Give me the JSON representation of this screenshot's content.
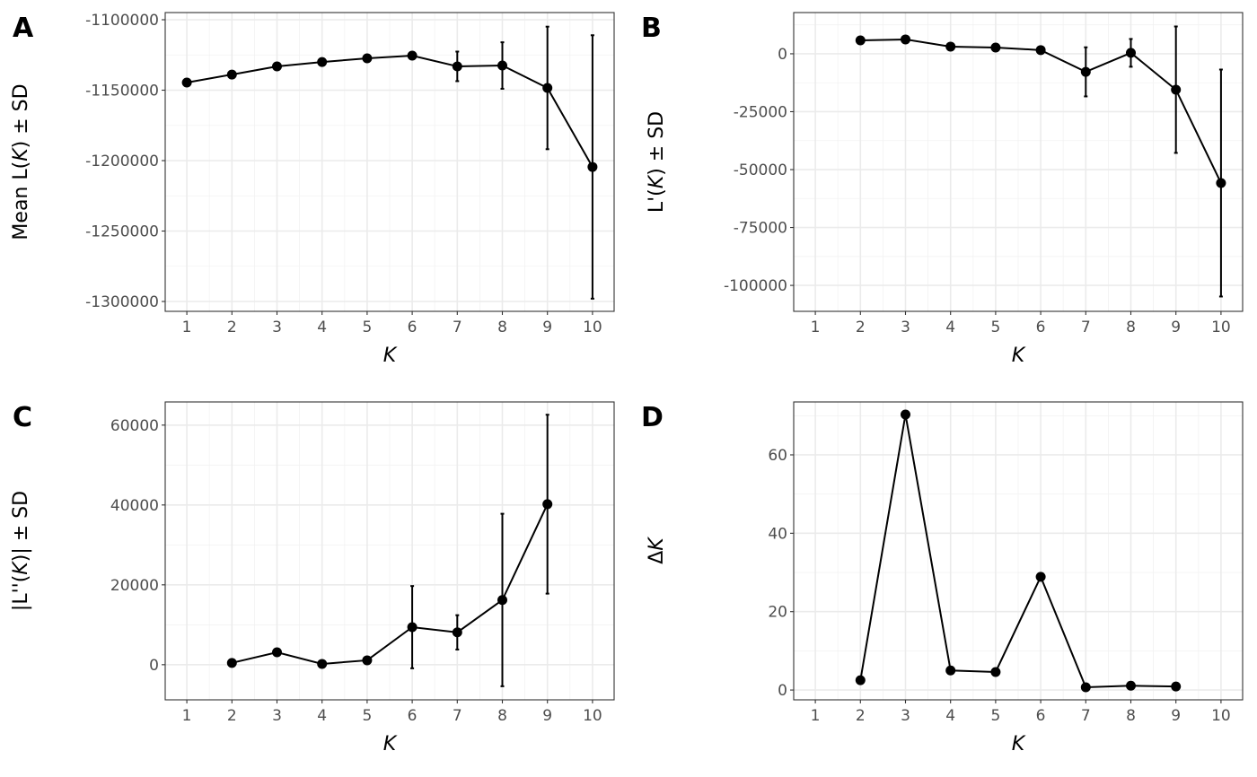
{
  "chart_data": [
    {
      "tag": "A",
      "type": "line",
      "xlabel": "K",
      "ylabel_parts": [
        "Mean L(",
        "K",
        ")  ±  SD"
      ],
      "x": [
        1,
        2,
        3,
        4,
        5,
        6,
        7,
        8,
        9,
        10
      ],
      "y": [
        -1144600,
        -1138900,
        -1133100,
        -1130000,
        -1127400,
        -1125500,
        -1133100,
        -1132500,
        -1148400,
        -1204500
      ],
      "sd": [
        0,
        0,
        0,
        0,
        0,
        0,
        10500,
        16500,
        43500,
        93500
      ],
      "ylim": [
        -1307000,
        -1094900
      ],
      "yticks": [
        -1300000,
        -1250000,
        -1200000,
        -1150000,
        -1100000
      ],
      "xlim": [
        0.52,
        10.48
      ],
      "xticks": [
        1,
        2,
        3,
        4,
        5,
        6,
        7,
        8,
        9,
        10
      ]
    },
    {
      "tag": "B",
      "type": "line",
      "xlabel": "K",
      "ylabel_parts": [
        "L'(",
        "K",
        ")  ±  SD"
      ],
      "x": [
        2,
        3,
        4,
        5,
        6,
        7,
        8,
        9,
        10
      ],
      "y": [
        5800,
        6200,
        3100,
        2700,
        1600,
        -7800,
        400,
        -15500,
        -55800
      ],
      "sd": [
        0,
        0,
        0,
        0,
        0,
        10600,
        6000,
        27300,
        49000
      ],
      "ylim": [
        -111200,
        17800
      ],
      "yticks": [
        -100000,
        -75000,
        -50000,
        -25000,
        0
      ],
      "xlim": [
        0.52,
        10.48
      ],
      "xticks": [
        1,
        2,
        3,
        4,
        5,
        6,
        7,
        8,
        9,
        10
      ]
    },
    {
      "tag": "C",
      "type": "line",
      "xlabel": "K",
      "ylabel_parts": [
        "|L''(",
        "K",
        ")|  ±  SD"
      ],
      "x": [
        2,
        3,
        4,
        5,
        6,
        7,
        8,
        9
      ],
      "y": [
        450,
        3100,
        200,
        1100,
        9400,
        8100,
        16200,
        40200
      ],
      "sd": [
        0,
        0,
        0,
        0,
        10300,
        4300,
        21600,
        22400
      ],
      "ylim": [
        -8800,
        65800
      ],
      "yticks": [
        0,
        20000,
        40000,
        60000
      ],
      "xlim": [
        0.52,
        10.48
      ],
      "xticks": [
        1,
        2,
        3,
        4,
        5,
        6,
        7,
        8,
        9,
        10
      ]
    },
    {
      "tag": "D",
      "type": "line",
      "xlabel": "K",
      "ylabel_parts": [
        "Δ",
        "K",
        ""
      ],
      "x": [
        2,
        3,
        4,
        5,
        6,
        7,
        8,
        9
      ],
      "y": [
        2.5,
        70.3,
        5.0,
        4.6,
        28.9,
        0.7,
        1.1,
        0.9
      ],
      "sd": [
        0,
        0,
        0,
        0,
        0,
        0,
        0,
        0
      ],
      "ylim": [
        -2.5,
        73.5
      ],
      "yticks": [
        0,
        20,
        40,
        60
      ],
      "xlim": [
        0.52,
        10.48
      ],
      "xticks": [
        1,
        2,
        3,
        4,
        5,
        6,
        7,
        8,
        9,
        10
      ]
    }
  ]
}
